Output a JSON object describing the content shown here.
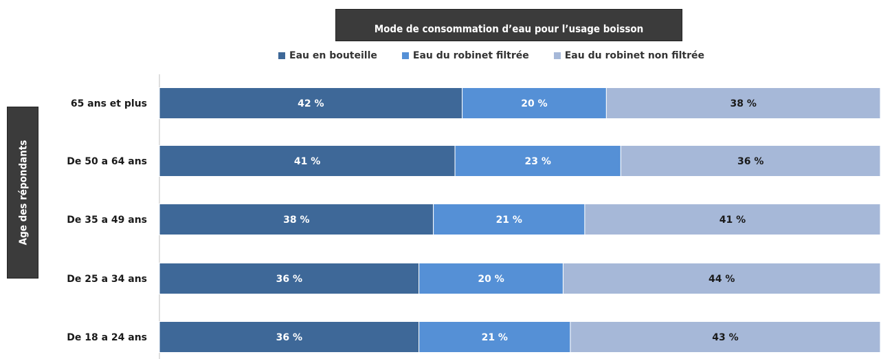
{
  "chart_data": {
    "type": "bar",
    "orientation": "horizontal",
    "stacked": true,
    "percent_stacked": true,
    "title": "Mode de consommation d’eau pour l’usage boisson",
    "ylabel": "Age des répondants",
    "xlabel": "",
    "legend_position": "top",
    "grid": false,
    "categories": [
      "65 ans et plus",
      "De 50 a 64 ans",
      "De 35 a 49 ans",
      "De 25 a 34 ans",
      "De 18 a 24 ans"
    ],
    "series": [
      {
        "name": "Eau en bouteille",
        "color": "#3e6898",
        "label_color": "#ffffff",
        "values": [
          42,
          41,
          38,
          36,
          36
        ],
        "labels": [
          "42 %",
          "41 %",
          "38 %",
          "36 %",
          "36 %"
        ]
      },
      {
        "name": "Eau du robinet filtrée",
        "color": "#5590d6",
        "label_color": "#ffffff",
        "values": [
          20,
          23,
          21,
          20,
          21
        ],
        "labels": [
          "20 %",
          "23 %",
          "21 %",
          "20 %",
          "21 %"
        ]
      },
      {
        "name": "Eau du robinet non filtrée",
        "color": "#a6b8d8",
        "label_color": "#1a1a1a",
        "values": [
          38,
          36,
          41,
          44,
          43
        ],
        "labels": [
          "38 %",
          "36 %",
          "41 %",
          "44 %",
          "43 %"
        ]
      }
    ]
  }
}
